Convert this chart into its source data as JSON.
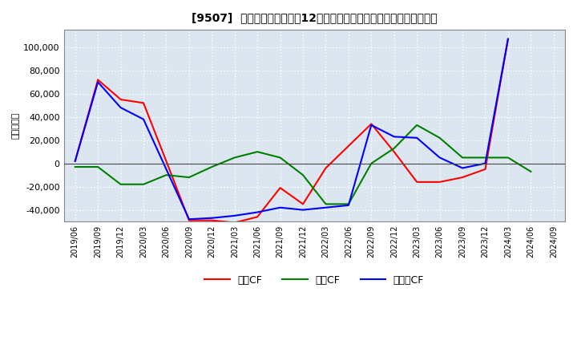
{
  "title": "[9507]  キャッシュフローの12か月移動合計の対前年同期増減額の推移",
  "ylabel": "（百万円）",
  "background_color": "#ffffff",
  "plot_bg_color": "#dce6f0",
  "grid_color": "#ffffff",
  "x_labels": [
    "2019/06",
    "2019/09",
    "2019/12",
    "2020/03",
    "2020/06",
    "2020/09",
    "2020/12",
    "2021/03",
    "2021/06",
    "2021/09",
    "2021/12",
    "2022/03",
    "2022/06",
    "2022/09",
    "2022/12",
    "2023/03",
    "2023/06",
    "2023/09",
    "2023/12",
    "2024/03",
    "2024/06",
    "2024/09"
  ],
  "eigyo_cf": [
    2000,
    72000,
    55000,
    52000,
    2000,
    -49000,
    -49000,
    -51000,
    -46000,
    -21000,
    -35000,
    -4000,
    15000,
    34000,
    10000,
    -16000,
    -16000,
    -12000,
    -5000,
    107000,
    null,
    null
  ],
  "toshi_cf": [
    -3000,
    -3000,
    -18000,
    -18000,
    -10000,
    -12000,
    -3000,
    5000,
    10000,
    5000,
    -10000,
    -35000,
    -35000,
    0,
    13000,
    33000,
    22000,
    5000,
    5000,
    5000,
    -7000,
    null
  ],
  "free_cf": [
    2000,
    70000,
    48000,
    38000,
    -5000,
    -48000,
    -47000,
    -45000,
    -42000,
    -38000,
    -40000,
    -38000,
    -36000,
    33000,
    23000,
    22000,
    5000,
    -4000,
    0,
    107000,
    null,
    null
  ],
  "eigyo_color": "#ff0000",
  "toshi_color": "#008000",
  "free_color": "#0000ff",
  "ylim": [
    -50000,
    115000
  ],
  "yticks": [
    -40000,
    -20000,
    0,
    20000,
    40000,
    60000,
    80000,
    100000
  ],
  "legend_labels": [
    "営業CF",
    "投資CF",
    "フリーCF"
  ]
}
